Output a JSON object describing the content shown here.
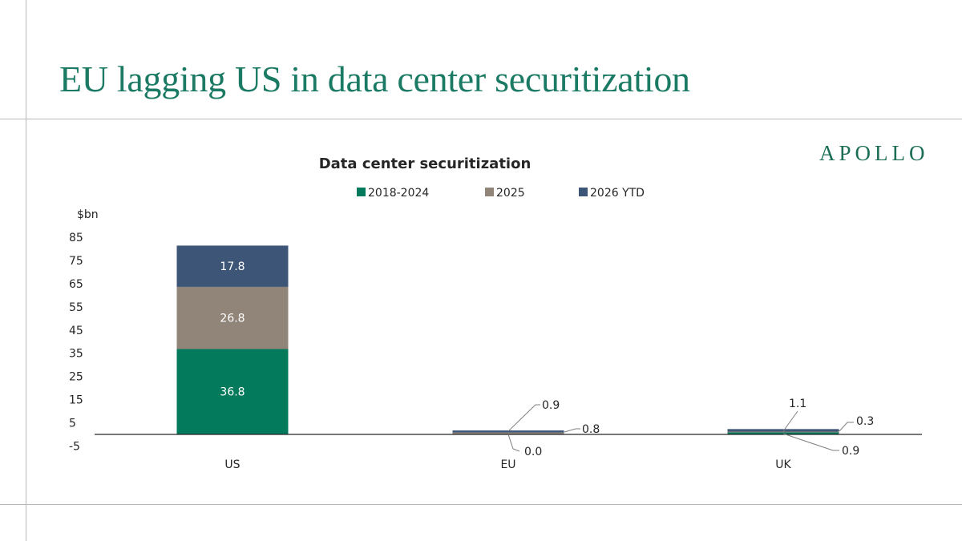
{
  "slide": {
    "title": "EU lagging US in data center securitization",
    "logo": "APOLLO"
  },
  "colors": {
    "title": "#1b7a64",
    "series_2018_2024": "#047a5c",
    "series_2025": "#918479",
    "series_2026_ytd": "#3d5576"
  },
  "chart_data": {
    "type": "bar",
    "stacked": true,
    "title": "Data center securitization",
    "ylabel": "$bn",
    "categories": [
      "US",
      "EU",
      "UK"
    ],
    "series": [
      {
        "name": "2018-2024",
        "values": [
          36.8,
          0.0,
          0.9
        ],
        "labels": [
          "36.8",
          "0.0",
          "0.9"
        ]
      },
      {
        "name": "2025",
        "values": [
          26.8,
          0.8,
          0.3
        ],
        "labels": [
          "26.8",
          "0.8",
          "0.3"
        ]
      },
      {
        "name": "2026 YTD",
        "values": [
          17.8,
          0.9,
          1.1
        ],
        "labels": [
          "17.8",
          "0.9",
          "1.1"
        ]
      }
    ],
    "yticks": [
      "85",
      "75",
      "65",
      "55",
      "45",
      "35",
      "25",
      "15",
      "5",
      "-5"
    ],
    "ylim": [
      -5,
      85
    ],
    "legend_position": "top",
    "grid": false
  }
}
